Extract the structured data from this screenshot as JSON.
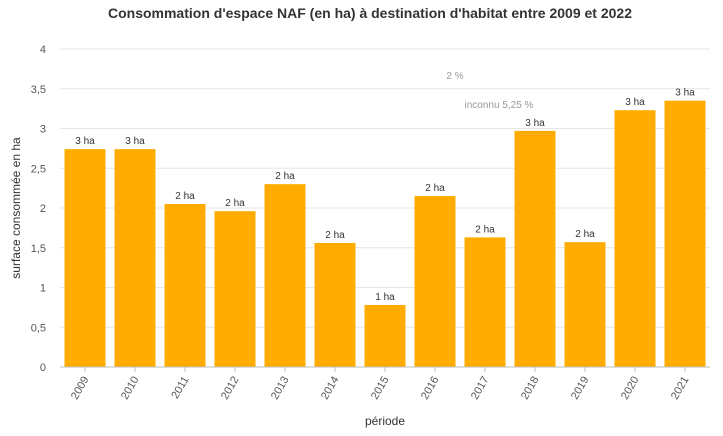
{
  "chart_data": {
    "type": "bar",
    "title": "Consommation d'espace NAF (en ha) à destination d'habitat entre 2009 et 2022",
    "xlabel": "période",
    "ylabel": "surface consommée en ha",
    "ylim": [
      0,
      4
    ],
    "yticks": [
      "0",
      "0,5",
      "1",
      "1,5",
      "2",
      "2,5",
      "3",
      "3,5",
      "4"
    ],
    "categories": [
      "2009",
      "2010",
      "2011",
      "2012",
      "2013",
      "2014",
      "2015",
      "2016",
      "2017",
      "2018",
      "2019",
      "2020",
      "2021"
    ],
    "values": [
      2.74,
      2.74,
      2.05,
      1.96,
      2.3,
      1.56,
      0.78,
      2.15,
      1.63,
      2.97,
      1.57,
      3.23,
      3.35
    ],
    "data_labels": [
      "3 ha",
      "3 ha",
      "2 ha",
      "2 ha",
      "2 ha",
      "2 ha",
      "1 ha",
      "2 ha",
      "2 ha",
      "3 ha",
      "2 ha",
      "3 ha",
      "3 ha"
    ],
    "annotations": [
      "2 %",
      "inconnu 5,25 %"
    ],
    "grid": true,
    "bar_color": "#FFAB00"
  }
}
